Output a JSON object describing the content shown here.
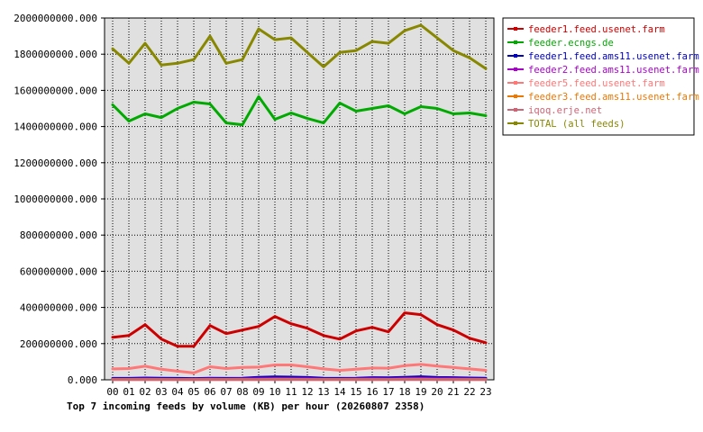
{
  "chart_data": {
    "type": "line",
    "title": "Top 7 incoming feeds by volume (KB) per hour (20260807 2358)",
    "xlabel": "",
    "ylabel": "",
    "categories": [
      "00",
      "01",
      "02",
      "03",
      "04",
      "05",
      "06",
      "07",
      "08",
      "09",
      "10",
      "11",
      "12",
      "13",
      "14",
      "15",
      "16",
      "17",
      "18",
      "19",
      "20",
      "21",
      "22",
      "23"
    ],
    "y_ticks": [
      "0.000",
      "200000000.000",
      "400000000.000",
      "600000000.000",
      "800000000.000",
      "1000000000.000",
      "1200000000.000",
      "1400000000.000",
      "1600000000.000",
      "1800000000.000",
      "2000000000.000"
    ],
    "ylim": [
      0,
      2000000000
    ],
    "grid": true,
    "plot_background": "#e0e0e0",
    "legend_position": "right",
    "series": [
      {
        "name": "feeder1.feed.usenet.farm",
        "color": "#cc0000",
        "values": [
          235000000,
          245000000,
          305000000,
          225000000,
          185000000,
          185000000,
          300000000,
          255000000,
          275000000,
          295000000,
          350000000,
          310000000,
          285000000,
          245000000,
          225000000,
          270000000,
          290000000,
          265000000,
          370000000,
          360000000,
          305000000,
          275000000,
          230000000,
          205000000
        ]
      },
      {
        "name": "feeder.ecngs.de",
        "color": "#00aa00",
        "values": [
          1520000000,
          1430000000,
          1470000000,
          1450000000,
          1500000000,
          1535000000,
          1525000000,
          1420000000,
          1410000000,
          1565000000,
          1440000000,
          1475000000,
          1445000000,
          1420000000,
          1530000000,
          1485000000,
          1500000000,
          1515000000,
          1470000000,
          1510000000,
          1500000000,
          1470000000,
          1475000000,
          1460000000
        ]
      },
      {
        "name": "feeder1.feed.ams11.usenet.farm",
        "color": "#0000bb",
        "values": [
          8000000,
          8000000,
          10000000,
          9000000,
          8000000,
          7000000,
          9000000,
          8000000,
          9000000,
          14000000,
          16000000,
          15000000,
          13000000,
          9000000,
          8000000,
          9000000,
          12000000,
          11000000,
          14000000,
          17000000,
          13000000,
          12000000,
          10000000,
          9000000
        ]
      },
      {
        "name": "feeder2.feed.ams11.usenet.farm",
        "color": "#aa00cc",
        "values": [
          4000000,
          4000000,
          5000000,
          4000000,
          3000000,
          3000000,
          5000000,
          4000000,
          5000000,
          6000000,
          7000000,
          6000000,
          6000000,
          4000000,
          4000000,
          5000000,
          6000000,
          5000000,
          7000000,
          8000000,
          6000000,
          6000000,
          5000000,
          4000000
        ]
      },
      {
        "name": "feeder5.feed.usenet.farm",
        "color": "#ff7777",
        "values": [
          60000000,
          62000000,
          75000000,
          58000000,
          48000000,
          38000000,
          72000000,
          62000000,
          68000000,
          70000000,
          82000000,
          82000000,
          72000000,
          60000000,
          52000000,
          58000000,
          65000000,
          64000000,
          78000000,
          85000000,
          76000000,
          68000000,
          60000000,
          52000000
        ]
      },
      {
        "name": "feeder3.feed.ams11.usenet.farm",
        "color": "#ee7700",
        "values": [
          2000000,
          2000000,
          2000000,
          2000000,
          1000000,
          1000000,
          2000000,
          2000000,
          2000000,
          2000000,
          3000000,
          3000000,
          2000000,
          2000000,
          2000000,
          2000000,
          2000000,
          2000000,
          3000000,
          3000000,
          2000000,
          2000000,
          2000000,
          2000000
        ]
      },
      {
        "name": "iqoq.erje.net",
        "color": "#cc6677",
        "values": [
          1000000,
          1000000,
          1000000,
          1000000,
          1000000,
          1000000,
          1000000,
          1000000,
          1000000,
          1000000,
          1000000,
          1000000,
          1000000,
          1000000,
          1000000,
          1000000,
          1000000,
          1000000,
          1000000,
          1000000,
          1000000,
          1000000,
          1000000,
          1000000
        ]
      },
      {
        "name": "TOTAL (all feeds)",
        "color": "#888800",
        "values": [
          1830000000,
          1750000000,
          1860000000,
          1740000000,
          1750000000,
          1770000000,
          1900000000,
          1750000000,
          1770000000,
          1940000000,
          1880000000,
          1890000000,
          1810000000,
          1730000000,
          1810000000,
          1820000000,
          1870000000,
          1860000000,
          1930000000,
          1960000000,
          1890000000,
          1820000000,
          1780000000,
          1720000000
        ]
      }
    ]
  }
}
